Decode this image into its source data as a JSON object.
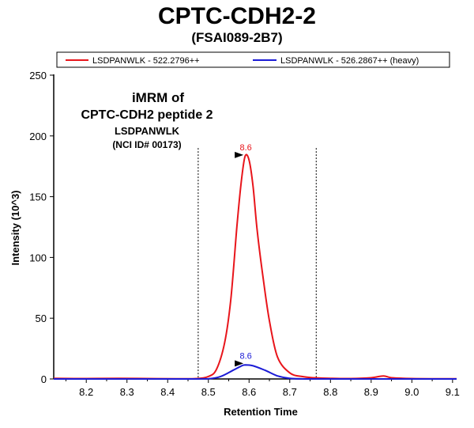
{
  "header": {
    "title": "CPTC-CDH2-2",
    "subtitle": "(FSAI089-2B7)"
  },
  "colors": {
    "light": "#e8151b",
    "heavy": "#1b1bd6"
  },
  "annotation": {
    "line1": "iMRM of",
    "line2": "CPTC-CDH2 peptide 2",
    "line3": "LSDPANWLK",
    "line4": "(NCI ID# 00173)"
  },
  "chart_data": {
    "type": "line",
    "xlabel": "Retention Time",
    "ylabel": "Intensity (10^3)",
    "xlim": [
      8.12,
      9.11
    ],
    "ylim": [
      0,
      250
    ],
    "x_ticks": [
      "8.2",
      "8.3",
      "8.4",
      "8.5",
      "8.6",
      "8.7",
      "8.8",
      "8.9",
      "9.0",
      "9.1"
    ],
    "y_ticks": [
      "0",
      "50",
      "100",
      "150",
      "200",
      "250"
    ],
    "legend_position": "top",
    "integration_bounds": [
      8.475,
      8.765
    ],
    "series": [
      {
        "name": "LSDPANWLK - 522.2796++",
        "color": "#e8151b",
        "peak_label": "8.6",
        "peak_x": 8.59,
        "peak_y": 183,
        "x": [
          8.12,
          8.2,
          8.28,
          8.35,
          8.42,
          8.47,
          8.5,
          8.52,
          8.54,
          8.555,
          8.57,
          8.58,
          8.59,
          8.6,
          8.61,
          8.62,
          8.635,
          8.65,
          8.67,
          8.7,
          8.73,
          8.76,
          8.8,
          8.85,
          8.9,
          8.93,
          8.95,
          9.0,
          9.05,
          9.11
        ],
        "y": [
          0.5,
          0.3,
          0.5,
          0.3,
          0.2,
          0.3,
          2,
          8,
          30,
          65,
          125,
          160,
          183,
          180,
          158,
          122,
          82,
          48,
          18,
          5,
          2,
          1,
          0.5,
          0.3,
          1,
          2.5,
          1,
          0.3,
          0.2,
          0.2
        ]
      },
      {
        "name": "LSDPANWLK - 526.2867++ (heavy)",
        "color": "#1b1bd6",
        "peak_label": "8.6",
        "peak_x": 8.59,
        "peak_y": 11.5,
        "x": [
          8.12,
          8.3,
          8.45,
          8.5,
          8.53,
          8.56,
          8.58,
          8.59,
          8.61,
          8.64,
          8.67,
          8.7,
          8.75,
          8.9,
          9.11
        ],
        "y": [
          0,
          0,
          0,
          0.2,
          2,
          7,
          10.5,
          11.5,
          10.8,
          7,
          2.5,
          0.5,
          0,
          0,
          0
        ]
      }
    ]
  }
}
